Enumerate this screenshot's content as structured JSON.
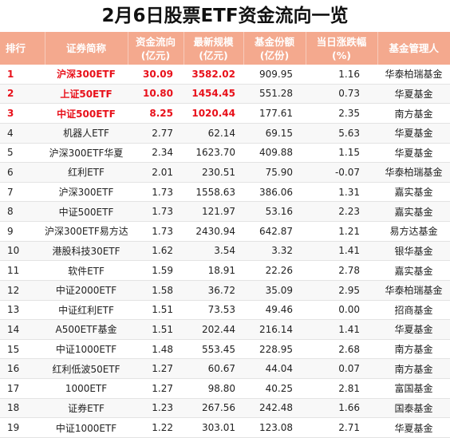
{
  "title": "2月6日股票ETF资金流向一览",
  "headers": [
    {
      "line1": "排行",
      "line2": ""
    },
    {
      "line1": "证券简称",
      "line2": ""
    },
    {
      "line1": "资金流向",
      "line2": "(亿元)"
    },
    {
      "line1": "最新规模",
      "line2": "(亿元)"
    },
    {
      "line1": "基金份额",
      "line2": "(亿份)"
    },
    {
      "line1": "当日涨跌幅",
      "line2": "(%)"
    },
    {
      "line1": "基金管理人",
      "line2": ""
    }
  ],
  "colors": {
    "header_bg": "#f4a98e",
    "highlight_text": "#e8101a"
  },
  "rows": [
    {
      "rank": "1",
      "name": "沪深300ETF",
      "flow": "30.09",
      "scale": "3582.02",
      "share": "909.95",
      "chg": "1.16",
      "manager": "华泰柏瑞基金",
      "highlight": true
    },
    {
      "rank": "2",
      "name": "上证50ETF",
      "flow": "10.80",
      "scale": "1454.45",
      "share": "551.28",
      "chg": "0.73",
      "manager": "华夏基金",
      "highlight": true
    },
    {
      "rank": "3",
      "name": "中证500ETF",
      "flow": "8.25",
      "scale": "1020.44",
      "share": "177.61",
      "chg": "2.35",
      "manager": "南方基金",
      "highlight": true
    },
    {
      "rank": "4",
      "name": "机器人ETF",
      "flow": "2.77",
      "scale": "62.14",
      "share": "69.15",
      "chg": "5.63",
      "manager": "华夏基金",
      "highlight": false
    },
    {
      "rank": "5",
      "name": "沪深300ETF华夏",
      "flow": "2.34",
      "scale": "1623.70",
      "share": "409.88",
      "chg": "1.15",
      "manager": "华夏基金",
      "highlight": false
    },
    {
      "rank": "6",
      "name": "红利ETF",
      "flow": "2.01",
      "scale": "230.51",
      "share": "75.90",
      "chg": "-0.07",
      "manager": "华泰柏瑞基金",
      "highlight": false
    },
    {
      "rank": "7",
      "name": "沪深300ETF",
      "flow": "1.73",
      "scale": "1558.63",
      "share": "386.06",
      "chg": "1.31",
      "manager": "嘉实基金",
      "highlight": false
    },
    {
      "rank": "8",
      "name": "中证500ETF",
      "flow": "1.73",
      "scale": "121.97",
      "share": "53.16",
      "chg": "2.23",
      "manager": "嘉实基金",
      "highlight": false
    },
    {
      "rank": "9",
      "name": "沪深300ETF易方达",
      "flow": "1.73",
      "scale": "2430.94",
      "share": "642.87",
      "chg": "1.21",
      "manager": "易方达基金",
      "highlight": false
    },
    {
      "rank": "10",
      "name": "港股科技30ETF",
      "flow": "1.62",
      "scale": "3.54",
      "share": "3.32",
      "chg": "1.41",
      "manager": "银华基金",
      "highlight": false
    },
    {
      "rank": "11",
      "name": "软件ETF",
      "flow": "1.59",
      "scale": "18.91",
      "share": "22.26",
      "chg": "2.78",
      "manager": "嘉实基金",
      "highlight": false
    },
    {
      "rank": "12",
      "name": "中证2000ETF",
      "flow": "1.58",
      "scale": "36.72",
      "share": "35.09",
      "chg": "2.95",
      "manager": "华泰柏瑞基金",
      "highlight": false
    },
    {
      "rank": "13",
      "name": "中证红利ETF",
      "flow": "1.51",
      "scale": "73.53",
      "share": "49.46",
      "chg": "0.00",
      "manager": "招商基金",
      "highlight": false
    },
    {
      "rank": "14",
      "name": "A500ETF基金",
      "flow": "1.51",
      "scale": "202.44",
      "share": "216.14",
      "chg": "1.41",
      "manager": "华夏基金",
      "highlight": false
    },
    {
      "rank": "15",
      "name": "中证1000ETF",
      "flow": "1.48",
      "scale": "553.45",
      "share": "228.95",
      "chg": "2.68",
      "manager": "南方基金",
      "highlight": false
    },
    {
      "rank": "16",
      "name": "红利低波50ETF",
      "flow": "1.27",
      "scale": "60.67",
      "share": "44.04",
      "chg": "0.07",
      "manager": "南方基金",
      "highlight": false
    },
    {
      "rank": "17",
      "name": "1000ETF",
      "flow": "1.27",
      "scale": "98.80",
      "share": "40.25",
      "chg": "2.81",
      "manager": "富国基金",
      "highlight": false
    },
    {
      "rank": "18",
      "name": "证券ETF",
      "flow": "1.23",
      "scale": "267.56",
      "share": "242.48",
      "chg": "1.66",
      "manager": "国泰基金",
      "highlight": false
    },
    {
      "rank": "19",
      "name": "中证1000ETF",
      "flow": "1.22",
      "scale": "303.01",
      "share": "123.08",
      "chg": "2.71",
      "manager": "华夏基金",
      "highlight": false
    }
  ]
}
